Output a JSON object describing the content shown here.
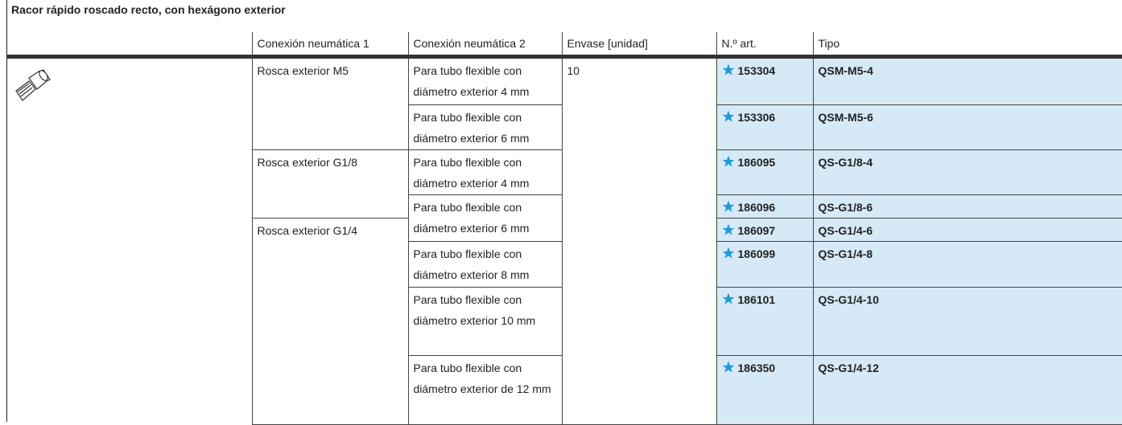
{
  "header": {
    "title": "Racor rápido roscado recto, con hexágono exterior"
  },
  "table": {
    "columns": [
      "Conexión neumática 1",
      "Conexión neumática 2",
      "Envase [unidad]",
      "N.º art.",
      "Tipo"
    ],
    "rows": [
      {
        "connection_1": "Rosca exterior M5",
        "connection_2": "Para tubo flexible con diámetro exterior 4 mm",
        "package": "10",
        "article": "153304",
        "type": "QSM-M5-4"
      },
      {
        "connection_2": "Para tubo flexible con diámetro exterior 6 mm",
        "article": "153306",
        "type": "QSM-M5-6"
      },
      {
        "connection_1": "Rosca exterior G1/8",
        "connection_2": "Para tubo flexible con diámetro exterior 4 mm",
        "article": "186095",
        "type": "QS-G1/8-4"
      },
      {
        "connection_2": "Para tubo flexible con diámetro exterior 6 mm",
        "article": "186096",
        "type": "QS-G1/8-6"
      },
      {
        "connection_1": "Rosca exterior G1/4",
        "article": "186097",
        "type": "QS-G1/4-6"
      },
      {
        "connection_2": "Para tubo flexible con diámetro exterior 8 mm",
        "article": "186099",
        "type": "QS-G1/4-8"
      },
      {
        "connection_2": "Para tubo flexible con diámetro exterior 10 mm",
        "article": "186101",
        "type": "QS-G1/4-10"
      },
      {
        "connection_2": "Para tubo flexible con diámetro exterior de 12 mm",
        "article": "186350",
        "type": "QS-G1/4-12"
      }
    ]
  }
}
